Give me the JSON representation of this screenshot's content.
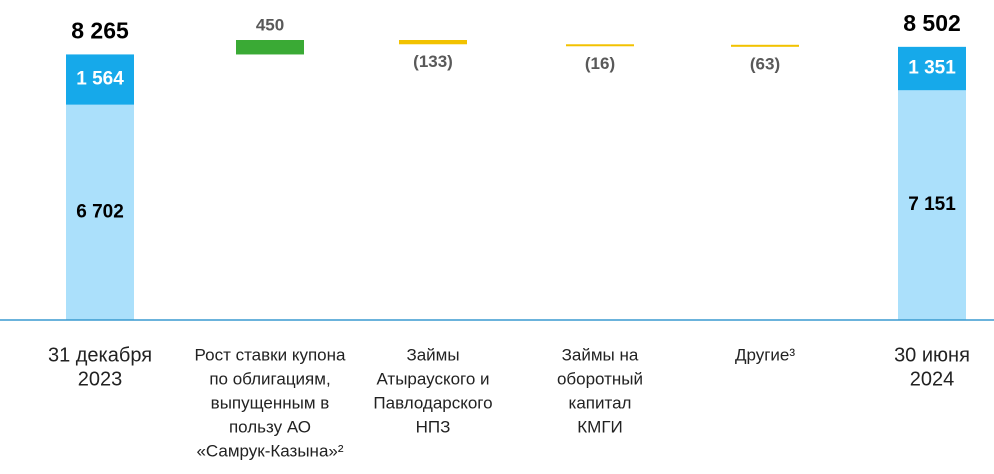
{
  "chart_data": {
    "type": "waterfall",
    "categories": [
      [
        "31 декабря",
        "2023"
      ],
      [
        "Рост ставки купона",
        "по облигациям,",
        "выпущенным в",
        "пользу АО",
        "«Самрук-Казына»²"
      ],
      [
        "Займы",
        "Атырауского и",
        "Павлодарского",
        "НПЗ"
      ],
      [
        "Займы на",
        "оборотный",
        "капитал",
        "КМГИ"
      ],
      [
        "Другие³"
      ],
      [
        "30 июня",
        "2024"
      ]
    ],
    "series": [
      {
        "color": "#abe0fb",
        "label_color": "#000000",
        "values": [
          6702,
          null,
          null,
          null,
          null,
          7151
        ],
        "value_labels": [
          "6 702",
          null,
          null,
          null,
          null,
          "7 151"
        ]
      },
      {
        "color": "#16a9ea",
        "label_color": "#ffffff",
        "values": [
          1564,
          null,
          null,
          null,
          null,
          1351
        ],
        "value_labels": [
          "1 564",
          null,
          null,
          null,
          null,
          "1 351"
        ]
      }
    ],
    "totals": [
      8265,
      null,
      null,
      null,
      null,
      8502
    ],
    "total_labels": [
      "8 265",
      null,
      null,
      null,
      null,
      "8 502"
    ],
    "changes": [
      null,
      450,
      -133,
      -16,
      -63,
      null
    ],
    "change_labels": [
      null,
      "450",
      "(133)",
      "(16)",
      "(63)",
      null
    ],
    "increase_color": "#3aaa35",
    "decrease_color": "#f2c200"
  }
}
